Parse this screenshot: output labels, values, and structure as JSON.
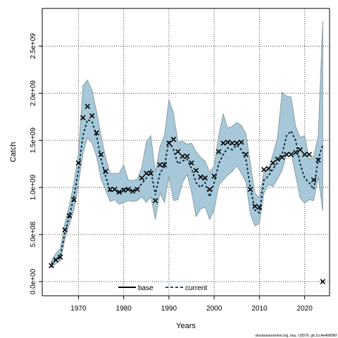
{
  "chart_data": {
    "type": "line",
    "title": "",
    "xlabel": "Years",
    "ylabel": "Catch",
    "xlim": [
      1962,
      2025.5
    ],
    "ylim": [
      -150000000.0,
      2900000000.0
    ],
    "xticks": [
      1970,
      1980,
      1990,
      2000,
      2010,
      2020
    ],
    "xtick_labels": [
      "1970",
      "1980",
      "1990",
      "2000",
      "2010",
      "2020"
    ],
    "yticks": [
      0,
      500000000,
      1000000000,
      1500000000,
      2000000000,
      2500000000
    ],
    "ytick_labels": [
      "0.0e+00",
      "5.0e+08",
      "1.0e+09",
      "1.5e+09",
      "2.0e+09",
      "2.5e+09"
    ],
    "grid": true,
    "legend": {
      "position": "bottom-center",
      "entries": [
        {
          "label": "base",
          "color": "#000000",
          "style": "solid"
        },
        {
          "label": "current",
          "color": "#1f4e79",
          "style": "dashed"
        }
      ]
    },
    "colors": {
      "band_fill": "#a6c8d8",
      "band_edge": "#7f8f99",
      "current": "#0a2a3a",
      "observed": "#000000"
    },
    "observed": {
      "name": "",
      "marker": "x",
      "x": [
        1964,
        1965,
        1966,
        1967,
        1968,
        1969,
        1970,
        1971,
        1972,
        1973,
        1974,
        1975,
        1976,
        1977,
        1978,
        1979,
        1980,
        1981,
        1982,
        1983,
        1984,
        1985,
        1986,
        1987,
        1988,
        1989,
        1990,
        1991,
        1992,
        1993,
        1994,
        1995,
        1996,
        1997,
        1998,
        1999,
        2000,
        2001,
        2002,
        2003,
        2004,
        2005,
        2006,
        2007,
        2008,
        2009,
        2010,
        2011,
        2012,
        2013,
        2014,
        2015,
        2016,
        2017,
        2018,
        2019,
        2020,
        2021,
        2022,
        2023,
        2024
      ],
      "y": [
        170000000.0,
        230000000.0,
        260000000.0,
        550000000.0,
        700000000.0,
        870000000.0,
        1260000000.0,
        1740000000.0,
        1860000000.0,
        1760000000.0,
        1580000000.0,
        1350000000.0,
        1170000000.0,
        980000000.0,
        980000000.0,
        950000000.0,
        970000000.0,
        980000000.0,
        960000000.0,
        980000000.0,
        1100000000.0,
        1150000000.0,
        1150000000.0,
        860000000.0,
        1240000000.0,
        1240000000.0,
        1470000000.0,
        1510000000.0,
        1380000000.0,
        1330000000.0,
        1330000000.0,
        1260000000.0,
        1180000000.0,
        1110000000.0,
        1100000000.0,
        980000000.0,
        1120000000.0,
        1380000000.0,
        1470000000.0,
        1480000000.0,
        1470000000.0,
        1470000000.0,
        1480000000.0,
        1350000000.0,
        980000000.0,
        800000000.0,
        790000000.0,
        1190000000.0,
        1200000000.0,
        1260000000.0,
        1300000000.0,
        1320000000.0,
        1350000000.0,
        1350000000.0,
        1370000000.0,
        1400000000.0,
        1350000000.0,
        1350000000.0,
        1080000000.0,
        1290000000.0,
        0
      ]
    },
    "current": {
      "name": "current",
      "x": [
        1964,
        1965,
        1966,
        1967,
        1968,
        1969,
        1970,
        1971,
        1972,
        1973,
        1974,
        1975,
        1976,
        1977,
        1978,
        1979,
        1980,
        1981,
        1982,
        1983,
        1984,
        1985,
        1986,
        1987,
        1988,
        1989,
        1990,
        1991,
        1992,
        1993,
        1994,
        1995,
        1996,
        1997,
        1998,
        1999,
        2000,
        2001,
        2002,
        2003,
        2004,
        2005,
        2006,
        2007,
        2008,
        2009,
        2010,
        2011,
        2012,
        2013,
        2014,
        2015,
        2016,
        2017,
        2018,
        2019,
        2020,
        2021,
        2022,
        2023,
        2024
      ],
      "y": [
        190000000.0,
        240000000.0,
        270000000.0,
        520000000.0,
        700000000.0,
        900000000.0,
        1180000000.0,
        1550000000.0,
        1720000000.0,
        1700000000.0,
        1550000000.0,
        1300000000.0,
        1120000000.0,
        960000000.0,
        980000000.0,
        930000000.0,
        990000000.0,
        980000000.0,
        960000000.0,
        980000000.0,
        1040000000.0,
        1100000000.0,
        1180000000.0,
        920000000.0,
        1150000000.0,
        1220000000.0,
        1500000000.0,
        1400000000.0,
        1250000000.0,
        1280000000.0,
        1300000000.0,
        1200000000.0,
        1050000000.0,
        1000000000.0,
        1050000000.0,
        900000000.0,
        1050000000.0,
        1250000000.0,
        1350000000.0,
        1420000000.0,
        1400000000.0,
        1450000000.0,
        1400000000.0,
        1300000000.0,
        1000000000.0,
        760000000.0,
        730000000.0,
        1080000000.0,
        1120000000.0,
        1200000000.0,
        1260000000.0,
        1350000000.0,
        1550000000.0,
        1600000000.0,
        1500000000.0,
        1250000000.0,
        1100000000.0,
        1050000000.0,
        980000000.0,
        1300000000.0,
        1450000000.0
      ]
    },
    "band": {
      "name": "",
      "x": [
        1964,
        1965,
        1966,
        1967,
        1968,
        1969,
        1970,
        1971,
        1972,
        1973,
        1974,
        1975,
        1976,
        1977,
        1978,
        1979,
        1980,
        1981,
        1982,
        1983,
        1984,
        1985,
        1986,
        1987,
        1988,
        1989,
        1990,
        1991,
        1992,
        1993,
        1994,
        1995,
        1996,
        1997,
        1998,
        1999,
        2000,
        2001,
        2002,
        2003,
        2004,
        2005,
        2006,
        2007,
        2008,
        2009,
        2010,
        2011,
        2012,
        2013,
        2014,
        2015,
        2016,
        2017,
        2018,
        2019,
        2020,
        2021,
        2022,
        2023,
        2024
      ],
      "lower": [
        150000000.0,
        190000000.0,
        220000000.0,
        450000000.0,
        610000000.0,
        760000000.0,
        1040000000.0,
        1360000000.0,
        1530000000.0,
        1470000000.0,
        1330000000.0,
        1090000000.0,
        970000000.0,
        850000000.0,
        870000000.0,
        820000000.0,
        840000000.0,
        860000000.0,
        850000000.0,
        860000000.0,
        900000000.0,
        840000000.0,
        900000000.0,
        660000000.0,
        940000000.0,
        840000000.0,
        1120000000.0,
        860000000.0,
        870000000.0,
        1050000000.0,
        1140000000.0,
        950000000.0,
        690000000.0,
        770000000.0,
        790000000.0,
        660000000.0,
        760000000.0,
        1020000000.0,
        1080000000.0,
        1130000000.0,
        1170000000.0,
        1230000000.0,
        1150000000.0,
        1060000000.0,
        720000000.0,
        590000000.0,
        620000000.0,
        940000000.0,
        1030000000.0,
        1010000000.0,
        1090000000.0,
        1180000000.0,
        1350000000.0,
        1360000000.0,
        1130000000.0,
        890000000.0,
        830000000.0,
        870000000.0,
        860000000.0,
        1110000000.0,
        750000000.0
      ],
      "upper": [
        220000000.0,
        300000000.0,
        350000000.0,
        620000000.0,
        810000000.0,
        1050000000.0,
        1360000000.0,
        2080000000.0,
        2140000000.0,
        2030000000.0,
        1810000000.0,
        1550000000.0,
        1320000000.0,
        1150000000.0,
        1150000000.0,
        1150000000.0,
        1240000000.0,
        1080000000.0,
        1070000000.0,
        1090000000.0,
        1210000000.0,
        1480000000.0,
        1550000000.0,
        1160000000.0,
        1430000000.0,
        1550000000.0,
        1930000000.0,
        1790000000.0,
        1480000000.0,
        1490000000.0,
        1460000000.0,
        1470000000.0,
        1380000000.0,
        1320000000.0,
        1280000000.0,
        1160000000.0,
        1230000000.0,
        1550000000.0,
        1780000000.0,
        1630000000.0,
        1650000000.0,
        1690000000.0,
        1660000000.0,
        1570000000.0,
        1260000000.0,
        940000000.0,
        890000000.0,
        1170000000.0,
        1200000000.0,
        1350000000.0,
        1530000000.0,
        2010000000.0,
        1970000000.0,
        1960000000.0,
        1650000000.0,
        1530000000.0,
        1550000000.0,
        1300000000.0,
        1330000000.0,
        1550000000.0,
        2770000000.0
      ]
    },
    "footer": "stockassessment.org, baz, r18976, git:1cc4e4b80f6f"
  }
}
